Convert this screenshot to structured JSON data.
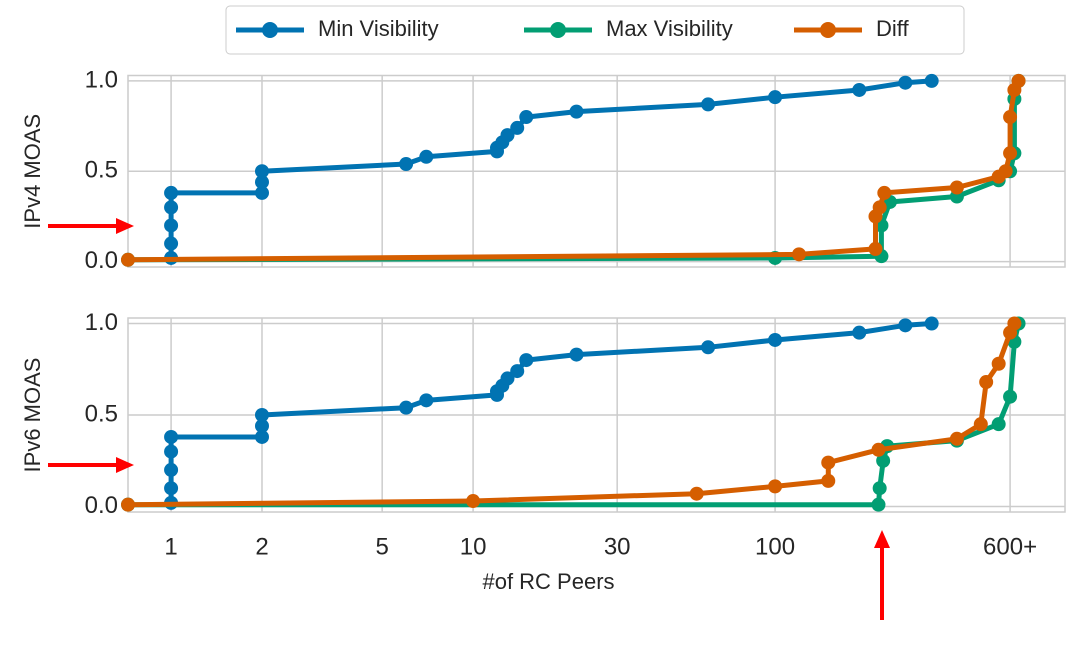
{
  "chart_data": [
    {
      "type": "line",
      "ylabel": "IPv4 MOAS",
      "xscale": "log",
      "grid": true,
      "xlim": [
        0.72,
        912
      ],
      "ylim": [
        -0.03,
        1.03
      ],
      "xticks": [
        1,
        2,
        5,
        10,
        30,
        100,
        600
      ],
      "yticks": [
        {
          "value": 0,
          "label": "0.0"
        },
        {
          "value": 0.5,
          "label": "0.5"
        },
        {
          "value": 1,
          "label": "1.0"
        }
      ],
      "series": [
        {
          "name": "Min Visibility",
          "color": "#0173b2",
          "x": [
            1,
            1,
            1,
            1,
            1,
            2,
            2,
            2,
            6,
            7,
            12,
            12,
            12.5,
            13,
            14,
            15,
            22,
            60,
            100,
            190,
            270,
            330
          ],
          "values": [
            0.02,
            0.1,
            0.2,
            0.3,
            0.38,
            0.38,
            0.44,
            0.5,
            0.54,
            0.58,
            0.61,
            0.63,
            0.66,
            0.7,
            0.74,
            0.8,
            0.83,
            0.87,
            0.91,
            0.95,
            0.99,
            1.0
          ]
        },
        {
          "name": "Max Visibility",
          "color": "#029e73",
          "x": [
            0.72,
            100,
            225,
            225,
            240,
            400,
            550,
            600,
            620,
            620,
            640
          ],
          "values": [
            0.01,
            0.02,
            0.03,
            0.2,
            0.33,
            0.36,
            0.45,
            0.5,
            0.6,
            0.9,
            1.0
          ]
        },
        {
          "name": "Diff",
          "color": "#d55e00",
          "x": [
            0.72,
            120,
            215,
            215,
            222,
            230,
            400,
            550,
            580,
            600,
            600,
            620,
            640
          ],
          "values": [
            0.01,
            0.04,
            0.07,
            0.25,
            0.3,
            0.38,
            0.41,
            0.47,
            0.5,
            0.6,
            0.8,
            0.95,
            1.0
          ]
        }
      ]
    },
    {
      "type": "line",
      "ylabel": "IPv6 MOAS",
      "xlabel": "#of RC Peers",
      "xscale": "log",
      "grid": true,
      "xlim": [
        0.72,
        912
      ],
      "ylim": [
        -0.03,
        1.03
      ],
      "xticks": [
        1,
        2,
        5,
        10,
        30,
        100,
        {
          "value": 600,
          "label": "600+"
        }
      ],
      "yticks": [
        {
          "value": 0,
          "label": "0.0"
        },
        {
          "value": 0.5,
          "label": "0.5"
        },
        {
          "value": 1,
          "label": "1.0"
        }
      ],
      "series": [
        {
          "color": "#0173b2",
          "x": [
            1,
            1,
            1,
            1,
            1,
            2,
            2,
            2,
            6,
            7,
            12,
            12,
            12.5,
            13,
            14,
            15,
            22,
            60,
            100,
            190,
            270,
            330
          ],
          "values": [
            0.02,
            0.1,
            0.2,
            0.3,
            0.38,
            0.38,
            0.44,
            0.5,
            0.54,
            0.58,
            0.61,
            0.63,
            0.66,
            0.7,
            0.74,
            0.8,
            0.83,
            0.87,
            0.91,
            0.95,
            0.99,
            1.0
          ]
        },
        {
          "color": "#029e73",
          "x": [
            0.72,
            220,
            222,
            228,
            235,
            400,
            550,
            600,
            620,
            640
          ],
          "values": [
            0.01,
            0.01,
            0.1,
            0.25,
            0.33,
            0.36,
            0.45,
            0.6,
            0.9,
            1.0
          ]
        },
        {
          "color": "#d55e00",
          "x": [
            0.72,
            10,
            55,
            100,
            150,
            150,
            220,
            400,
            480,
            500,
            550,
            600,
            620
          ],
          "values": [
            0.01,
            0.03,
            0.07,
            0.11,
            0.14,
            0.24,
            0.31,
            0.37,
            0.45,
            0.68,
            0.78,
            0.95,
            1.0
          ]
        }
      ]
    }
  ]
}
